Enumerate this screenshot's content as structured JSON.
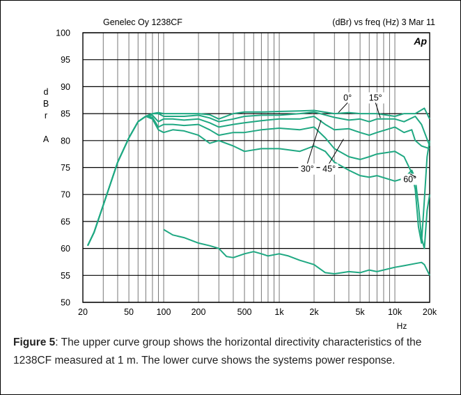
{
  "caption": {
    "figure_label": "Figure 5",
    "text": ": The upper curve group shows the horizontal directivity characteristics of the 1238CF measured at 1 m. The lower curve shows the systems power response."
  },
  "chart_data": {
    "type": "line",
    "title_left": "Genelec Oy 1238CF",
    "title_right": "(dBr) vs freq (Hz) 3 Mar 11",
    "logo": "Ap",
    "ylabel": [
      "d",
      "B",
      "r",
      "",
      "A"
    ],
    "xlabel": "Hz",
    "xscale": "log",
    "xlim": [
      20,
      20000
    ],
    "ylim": [
      50,
      100
    ],
    "grid": true,
    "color": "#1fa882",
    "xticks": [
      {
        "value": 20,
        "label": "20"
      },
      {
        "value": 50,
        "label": "50"
      },
      {
        "value": 100,
        "label": "100"
      },
      {
        "value": 200,
        "label": "200"
      },
      {
        "value": 500,
        "label": "500"
      },
      {
        "value": 1000,
        "label": "1k"
      },
      {
        "value": 2000,
        "label": "2k"
      },
      {
        "value": 5000,
        "label": "5k"
      },
      {
        "value": 10000,
        "label": "10k"
      },
      {
        "value": 20000,
        "label": "20k"
      }
    ],
    "yticks": [
      50,
      55,
      60,
      65,
      70,
      75,
      80,
      85,
      90,
      95,
      100
    ],
    "series": [
      {
        "name": "0°",
        "points": [
          [
            22,
            60.5
          ],
          [
            25,
            63
          ],
          [
            30,
            68
          ],
          [
            40,
            76
          ],
          [
            50,
            80.5
          ],
          [
            60,
            83.5
          ],
          [
            70,
            84.5
          ],
          [
            80,
            85
          ],
          [
            90,
            85.2
          ],
          [
            100,
            85
          ],
          [
            120,
            85
          ],
          [
            150,
            85
          ],
          [
            200,
            85
          ],
          [
            250,
            84.8
          ],
          [
            300,
            84
          ],
          [
            400,
            85
          ],
          [
            500,
            85.3
          ],
          [
            700,
            85.3
          ],
          [
            1000,
            85.4
          ],
          [
            1500,
            85.5
          ],
          [
            2000,
            85.6
          ],
          [
            3000,
            85
          ],
          [
            4000,
            85.2
          ],
          [
            5000,
            85
          ],
          [
            7000,
            85
          ],
          [
            10000,
            84.5
          ],
          [
            12000,
            85
          ],
          [
            15000,
            85
          ],
          [
            18000,
            86
          ],
          [
            20000,
            84
          ]
        ]
      },
      {
        "name": "15°",
        "points": [
          [
            22,
            60.5
          ],
          [
            25,
            63
          ],
          [
            30,
            68
          ],
          [
            40,
            76
          ],
          [
            50,
            80.5
          ],
          [
            60,
            83.5
          ],
          [
            70,
            84.5
          ],
          [
            80,
            85
          ],
          [
            90,
            85
          ],
          [
            100,
            84.5
          ],
          [
            120,
            84.5
          ],
          [
            150,
            84.5
          ],
          [
            200,
            84.7
          ],
          [
            250,
            84.2
          ],
          [
            300,
            83.5
          ],
          [
            400,
            84
          ],
          [
            500,
            84.5
          ],
          [
            700,
            84.7
          ],
          [
            1000,
            84.7
          ],
          [
            1500,
            85
          ],
          [
            2000,
            85.3
          ],
          [
            3000,
            84.3
          ],
          [
            4000,
            83.8
          ],
          [
            5000,
            84
          ],
          [
            6000,
            83.5
          ],
          [
            7000,
            84
          ],
          [
            10000,
            84
          ],
          [
            12000,
            83.5
          ],
          [
            15000,
            84.5
          ],
          [
            17000,
            83
          ],
          [
            20000,
            79
          ]
        ]
      },
      {
        "name": "30°",
        "points": [
          [
            22,
            60.5
          ],
          [
            25,
            63
          ],
          [
            30,
            68
          ],
          [
            40,
            76
          ],
          [
            50,
            80.5
          ],
          [
            60,
            83.5
          ],
          [
            70,
            84.5
          ],
          [
            80,
            84.7
          ],
          [
            90,
            83.5
          ],
          [
            100,
            84
          ],
          [
            120,
            84
          ],
          [
            150,
            83.8
          ],
          [
            200,
            84
          ],
          [
            250,
            83.3
          ],
          [
            300,
            82.5
          ],
          [
            400,
            83
          ],
          [
            500,
            83.3
          ],
          [
            700,
            83.7
          ],
          [
            1000,
            84
          ],
          [
            1500,
            84
          ],
          [
            2000,
            84.5
          ],
          [
            2500,
            83
          ],
          [
            3000,
            82
          ],
          [
            4000,
            82.2
          ],
          [
            5000,
            81.5
          ],
          [
            6000,
            81
          ],
          [
            7000,
            81.5
          ],
          [
            10000,
            82.5
          ],
          [
            12000,
            81.5
          ],
          [
            14000,
            82
          ],
          [
            15000,
            80
          ],
          [
            17000,
            79
          ],
          [
            20000,
            78.5
          ]
        ]
      },
      {
        "name": "45°",
        "points": [
          [
            22,
            60.5
          ],
          [
            25,
            63
          ],
          [
            30,
            68
          ],
          [
            40,
            76
          ],
          [
            50,
            80.5
          ],
          [
            60,
            83.5
          ],
          [
            70,
            84.5
          ],
          [
            80,
            84.3
          ],
          [
            90,
            82.5
          ],
          [
            100,
            83
          ],
          [
            120,
            83
          ],
          [
            150,
            82.8
          ],
          [
            200,
            83
          ],
          [
            250,
            82
          ],
          [
            300,
            81
          ],
          [
            400,
            81.5
          ],
          [
            500,
            81.5
          ],
          [
            700,
            82
          ],
          [
            1000,
            82.3
          ],
          [
            1500,
            82
          ],
          [
            2000,
            82.5
          ],
          [
            2500,
            80.5
          ],
          [
            3000,
            78.5
          ],
          [
            4000,
            77
          ],
          [
            5000,
            76.5
          ],
          [
            6000,
            77
          ],
          [
            7000,
            77.5
          ],
          [
            10000,
            78
          ],
          [
            12000,
            77
          ],
          [
            14000,
            74
          ],
          [
            15000,
            71
          ],
          [
            16000,
            64
          ],
          [
            17000,
            61
          ],
          [
            18000,
            69
          ],
          [
            19000,
            77
          ],
          [
            20000,
            80
          ]
        ]
      },
      {
        "name": "60°",
        "points": [
          [
            22,
            60.5
          ],
          [
            25,
            63
          ],
          [
            30,
            68
          ],
          [
            40,
            76
          ],
          [
            50,
            80.5
          ],
          [
            60,
            83.5
          ],
          [
            70,
            84.5
          ],
          [
            80,
            84
          ],
          [
            90,
            82
          ],
          [
            100,
            81.5
          ],
          [
            120,
            82
          ],
          [
            150,
            81.8
          ],
          [
            200,
            81
          ],
          [
            250,
            79.5
          ],
          [
            300,
            80
          ],
          [
            400,
            79
          ],
          [
            500,
            78
          ],
          [
            700,
            78.5
          ],
          [
            1000,
            78.5
          ],
          [
            1500,
            78
          ],
          [
            2000,
            79
          ],
          [
            2500,
            78
          ],
          [
            3000,
            76
          ],
          [
            4000,
            74.5
          ],
          [
            5000,
            73.5
          ],
          [
            6000,
            73.2
          ],
          [
            7000,
            73.5
          ],
          [
            10000,
            72.5
          ],
          [
            12000,
            73
          ],
          [
            14000,
            74.5
          ],
          [
            15000,
            73
          ],
          [
            16000,
            68
          ],
          [
            17000,
            62
          ],
          [
            18000,
            60
          ],
          [
            19000,
            67
          ],
          [
            20000,
            70
          ]
        ]
      },
      {
        "name": "",
        "points": [
          [
            100,
            63.5
          ],
          [
            120,
            62.5
          ],
          [
            150,
            62
          ],
          [
            200,
            61
          ],
          [
            250,
            60.5
          ],
          [
            300,
            60
          ],
          [
            350,
            58.5
          ],
          [
            400,
            58.3
          ],
          [
            500,
            59
          ],
          [
            600,
            59.4
          ],
          [
            700,
            59
          ],
          [
            800,
            58.6
          ],
          [
            1000,
            59
          ],
          [
            1200,
            58.6
          ],
          [
            1500,
            57.8
          ],
          [
            2000,
            57
          ],
          [
            2500,
            55.5
          ],
          [
            3000,
            55.3
          ],
          [
            3500,
            55.5
          ],
          [
            4000,
            55.7
          ],
          [
            5000,
            55.5
          ],
          [
            6000,
            56
          ],
          [
            7000,
            55.7
          ],
          [
            10000,
            56.5
          ],
          [
            12000,
            56.8
          ],
          [
            15000,
            57.2
          ],
          [
            17000,
            57.4
          ],
          [
            18000,
            57
          ],
          [
            20000,
            55
          ]
        ]
      }
    ],
    "annotations": [
      {
        "text": "0°",
        "x": 3900,
        "y": 87.4,
        "arrow_to": [
          3250,
          85.2
        ]
      },
      {
        "text": "15°",
        "x": 6800,
        "y": 87.4,
        "arrow_to": [
          7500,
          84.2
        ]
      },
      {
        "text": "30°",
        "x": 1750,
        "y": 74.2,
        "arrow_to": [
          2300,
          83.8
        ]
      },
      {
        "text": "45°",
        "x": 2700,
        "y": 74.2,
        "arrow_to": [
          3600,
          80.3
        ]
      },
      {
        "text": "60°",
        "x": 13500,
        "y": 72.3,
        "arrow_to": [
          15200,
          73.2
        ]
      }
    ]
  }
}
